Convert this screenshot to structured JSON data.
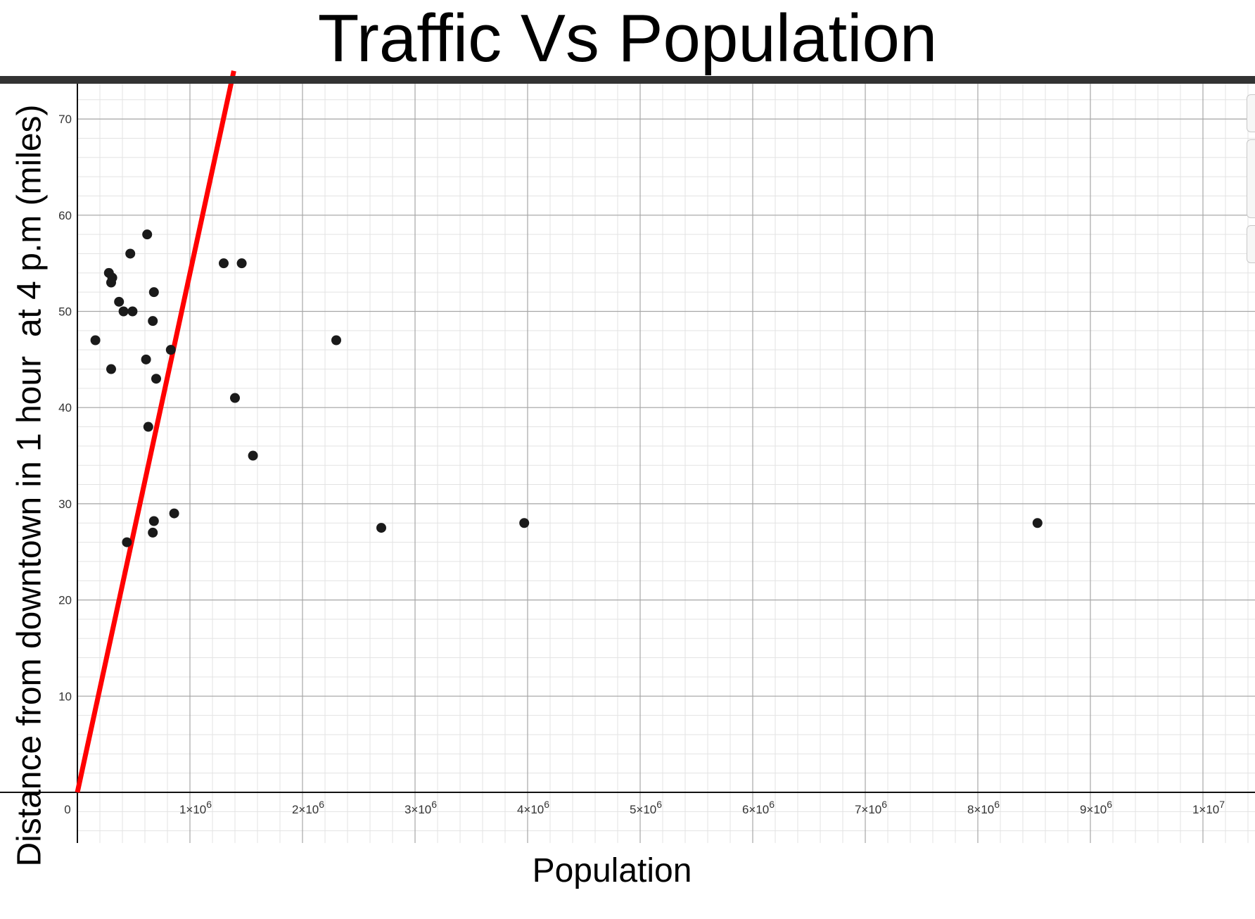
{
  "chart_data": {
    "type": "scatter",
    "title": "Traffic Vs Population",
    "xlabel": "Population",
    "ylabel": "Distance from downtown in 1 hour  at 4 p.m (miles)",
    "xlim": [
      0,
      10500000
    ],
    "ylim": [
      -5,
      73.5
    ],
    "grid": true,
    "x_ticks": [
      {
        "value": 0,
        "label": "0"
      },
      {
        "value": 1000000,
        "label": "1×10^6"
      },
      {
        "value": 2000000,
        "label": "2×10^6"
      },
      {
        "value": 3000000,
        "label": "3×10^6"
      },
      {
        "value": 4000000,
        "label": "4×10^6"
      },
      {
        "value": 5000000,
        "label": "5×10^6"
      },
      {
        "value": 6000000,
        "label": "6×10^6"
      },
      {
        "value": 7000000,
        "label": "7×10^6"
      },
      {
        "value": 8000000,
        "label": "8×10^6"
      },
      {
        "value": 9000000,
        "label": "9×10^6"
      },
      {
        "value": 10000000,
        "label": "1×10^7"
      }
    ],
    "y_ticks": [
      10,
      20,
      30,
      40,
      50,
      60,
      70
    ],
    "points": [
      {
        "x": 160000,
        "y": 47
      },
      {
        "x": 280000,
        "y": 54
      },
      {
        "x": 300000,
        "y": 53
      },
      {
        "x": 310000,
        "y": 53.5
      },
      {
        "x": 300000,
        "y": 44
      },
      {
        "x": 370000,
        "y": 51
      },
      {
        "x": 410000,
        "y": 50
      },
      {
        "x": 470000,
        "y": 56
      },
      {
        "x": 490000,
        "y": 50
      },
      {
        "x": 440000,
        "y": 26
      },
      {
        "x": 620000,
        "y": 58
      },
      {
        "x": 610000,
        "y": 45
      },
      {
        "x": 630000,
        "y": 38
      },
      {
        "x": 680000,
        "y": 52
      },
      {
        "x": 670000,
        "y": 49
      },
      {
        "x": 700000,
        "y": 43
      },
      {
        "x": 680000,
        "y": 28.2
      },
      {
        "x": 670000,
        "y": 27
      },
      {
        "x": 830000,
        "y": 46
      },
      {
        "x": 860000,
        "y": 29
      },
      {
        "x": 1300000,
        "y": 55
      },
      {
        "x": 1460000,
        "y": 55
      },
      {
        "x": 1400000,
        "y": 41
      },
      {
        "x": 1560000,
        "y": 35
      },
      {
        "x": 2300000,
        "y": 47
      },
      {
        "x": 2700000,
        "y": 27.5
      },
      {
        "x": 3970000,
        "y": 28
      },
      {
        "x": 8530000,
        "y": 28
      }
    ],
    "trend_line": {
      "color": "#ff0000",
      "from": {
        "x": 0,
        "y": 0
      },
      "to": {
        "x": 1390000,
        "y": 75
      }
    }
  }
}
